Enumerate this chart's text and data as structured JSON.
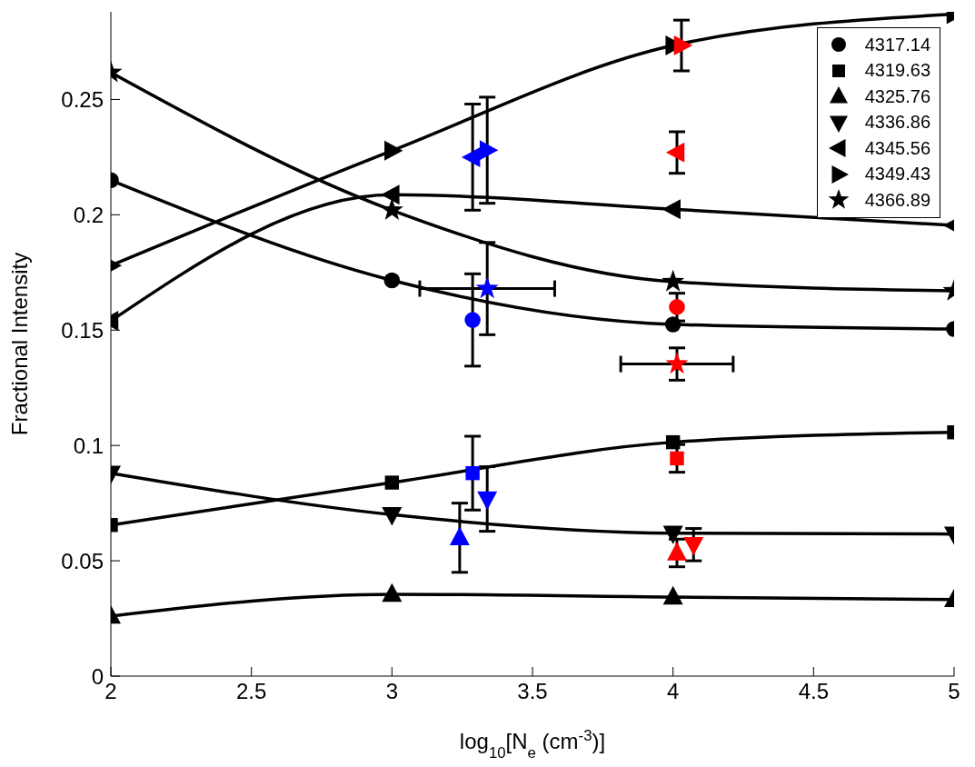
{
  "chart_data": {
    "type": "line",
    "xlabel": "log$_{10}$[N$_{e}$ (cm$^{-3}$)]",
    "ylabel": "Fractional Intensity",
    "xlim": [
      2,
      5
    ],
    "xticks": [
      2,
      2.5,
      3,
      3.5,
      4,
      4.5,
      5
    ],
    "ylim": [
      0,
      0.288
    ],
    "yticks": [
      0,
      0.05,
      0.1,
      0.15,
      0.2,
      0.25
    ],
    "grid": false,
    "legend": "top right",
    "series": [
      {
        "name": "4317.14",
        "color": "#000000",
        "marker": "circle",
        "x": [
          2,
          3,
          4,
          5
        ],
        "values": [
          0.215,
          0.1716,
          0.1525,
          0.1505
        ]
      },
      {
        "name": "4319.63",
        "color": "#000000",
        "marker": "square",
        "x": [
          2,
          3,
          4,
          5
        ],
        "values": [
          0.0655,
          0.0839,
          0.1014,
          0.1057
        ]
      },
      {
        "name": "4325.76",
        "color": "#000000",
        "marker": "triangle",
        "x": [
          2,
          3,
          4,
          5
        ],
        "values": [
          0.026,
          0.0355,
          0.0343,
          0.0332
        ]
      },
      {
        "name": "4336.86",
        "color": "#000000",
        "marker": "triangle-down",
        "x": [
          2,
          3,
          4,
          5
        ],
        "values": [
          0.088,
          0.07,
          0.062,
          0.0616
        ]
      },
      {
        "name": "4345.56",
        "color": "#000000",
        "marker": "triangle-left",
        "x": [
          2,
          3,
          4,
          5
        ],
        "values": [
          0.154,
          0.2087,
          0.2024,
          0.1954
        ]
      },
      {
        "name": "4349.43",
        "color": "#000000",
        "marker": "triangle-right",
        "x": [
          2,
          3,
          4,
          5
        ],
        "values": [
          0.178,
          0.2278,
          0.2734,
          0.287
        ]
      },
      {
        "name": "4366.89",
        "color": "#000000",
        "marker": "star",
        "x": [
          2,
          3,
          4,
          5
        ],
        "values": [
          0.2617,
          0.202,
          0.171,
          0.167
        ]
      },
      {
        "type": "scatter",
        "color": "#0000ff",
        "marker": "circle",
        "x": [
          3.287
        ],
        "values": [
          0.1544
        ],
        "errors": [
          0.02
        ]
      },
      {
        "type": "scatter",
        "color": "#0000ff",
        "marker": "square",
        "x": [
          3.287
        ],
        "values": [
          0.088
        ],
        "errors": [
          0.016
        ]
      },
      {
        "type": "scatter",
        "color": "#0000ff",
        "marker": "triangle",
        "x": [
          3.241
        ],
        "values": [
          0.06
        ],
        "errors": [
          0.015
        ]
      },
      {
        "type": "scatter",
        "color": "#0000ff",
        "marker": "triangle-down",
        "x": [
          3.339
        ],
        "values": [
          0.0768
        ],
        "errors": [
          0.014
        ]
      },
      {
        "type": "scatter",
        "color": "#0000ff",
        "marker": "triangle-left",
        "x": [
          3.287
        ],
        "values": [
          0.225
        ],
        "errors": [
          0.023
        ]
      },
      {
        "type": "scatter",
        "color": "#0000ff",
        "marker": "triangle-right",
        "x": [
          3.339
        ],
        "values": [
          0.228
        ],
        "errors": [
          0.023
        ]
      },
      {
        "type": "scatter",
        "color": "#0000ff",
        "marker": "star",
        "x": [
          3.339
        ],
        "values": [
          0.168
        ],
        "errors": [
          0.02
        ],
        "xerrors": [
          0.24
        ]
      },
      {
        "type": "scatter",
        "color": "#ff0000",
        "marker": "circle",
        "x": [
          4.014
        ],
        "values": [
          0.16
        ],
        "errors": [
          0.006
        ]
      },
      {
        "type": "scatter",
        "color": "#ff0000",
        "marker": "square",
        "x": [
          4.014
        ],
        "values": [
          0.0944
        ],
        "errors": [
          0.006
        ]
      },
      {
        "type": "scatter",
        "color": "#ff0000",
        "marker": "triangle",
        "x": [
          4.014
        ],
        "values": [
          0.0534
        ],
        "errors": [
          0.006
        ]
      },
      {
        "type": "scatter",
        "color": "#ff0000",
        "marker": "triangle-down",
        "x": [
          4.073
        ],
        "values": [
          0.057
        ],
        "errors": [
          0.007
        ]
      },
      {
        "type": "scatter",
        "color": "#ff0000",
        "marker": "triangle-left",
        "x": [
          4.014
        ],
        "values": [
          0.227
        ],
        "errors": [
          0.009
        ]
      },
      {
        "type": "scatter",
        "color": "#ff0000",
        "marker": "triangle-right",
        "x": [
          4.03
        ],
        "values": [
          0.2734
        ],
        "errors": [
          0.011
        ]
      },
      {
        "type": "scatter",
        "color": "#ff0000",
        "marker": "star",
        "x": [
          4.014
        ],
        "values": [
          0.1353
        ],
        "errors": [
          0.007
        ],
        "xerrors": [
          0.2
        ]
      }
    ]
  }
}
